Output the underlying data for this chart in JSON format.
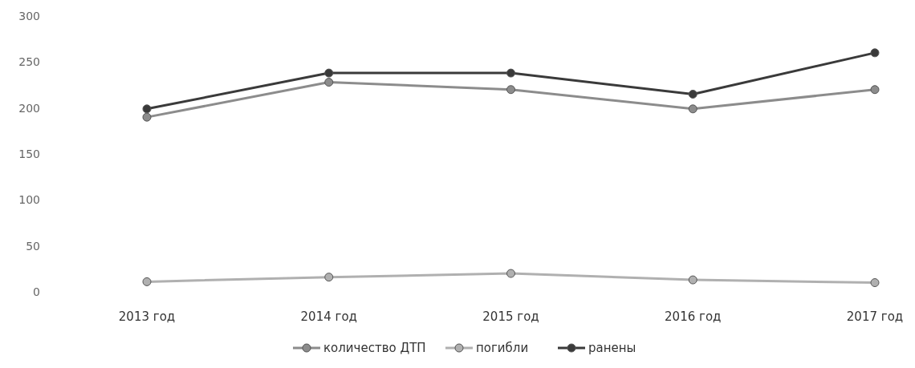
{
  "chart_data": {
    "type": "line",
    "categories": [
      "2013 год",
      "2014 год",
      "2015 год",
      "2016 год",
      "2017 год"
    ],
    "series": [
      {
        "name": "количество ДТП",
        "color": "#8c8c8c",
        "values": [
          190,
          228,
          220,
          199,
          220
        ]
      },
      {
        "name": "погибли",
        "color": "#b0b0b0",
        "values": [
          11,
          16,
          20,
          13,
          10
        ]
      },
      {
        "name": "ранены",
        "color": "#3a3a3a",
        "values": [
          199,
          238,
          238,
          215,
          260
        ]
      }
    ],
    "ylim": [
      0,
      300
    ],
    "yticks": [
      0,
      50,
      100,
      150,
      200,
      250,
      300
    ],
    "grid": false,
    "legend": "bottom",
    "marker": "circle",
    "line_style": "solid"
  }
}
